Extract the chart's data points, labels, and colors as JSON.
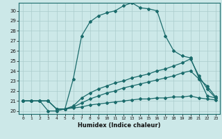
{
  "title": "",
  "xlabel": "Humidex (Indice chaleur)",
  "bg_color": "#cce8e8",
  "grid_color": "#aacccc",
  "line_color": "#1a6b6b",
  "xlim": [
    -0.5,
    23.5
  ],
  "ylim": [
    19.7,
    30.8
  ],
  "yticks": [
    20,
    21,
    22,
    23,
    24,
    25,
    26,
    27,
    28,
    29,
    30
  ],
  "xticks": [
    0,
    1,
    2,
    3,
    4,
    5,
    6,
    7,
    8,
    9,
    10,
    11,
    12,
    13,
    14,
    15,
    16,
    17,
    18,
    19,
    20,
    21,
    22,
    23
  ],
  "line1_x": [
    0,
    1,
    2,
    3,
    4,
    5,
    6,
    7,
    8,
    9,
    10,
    11,
    12,
    13,
    14,
    15,
    16,
    17,
    18,
    19,
    20,
    21,
    22,
    23
  ],
  "line1_y": [
    21.0,
    21.0,
    21.0,
    20.0,
    20.0,
    20.2,
    23.2,
    27.5,
    28.9,
    29.5,
    29.8,
    30.0,
    30.5,
    30.8,
    30.3,
    30.2,
    30.0,
    27.5,
    26.0,
    25.5,
    25.3,
    23.3,
    21.5,
    21.3
  ],
  "line2_x": [
    0,
    1,
    2,
    3,
    4,
    5,
    6,
    7,
    8,
    9,
    10,
    11,
    12,
    13,
    14,
    15,
    16,
    17,
    18,
    19,
    20,
    21,
    22,
    23
  ],
  "line2_y": [
    21.0,
    21.0,
    21.0,
    21.0,
    20.2,
    20.2,
    20.5,
    21.3,
    21.8,
    22.2,
    22.5,
    22.8,
    23.0,
    23.3,
    23.5,
    23.7,
    24.0,
    24.2,
    24.5,
    24.8,
    25.2,
    23.5,
    22.2,
    21.3
  ],
  "line3_x": [
    0,
    1,
    2,
    3,
    4,
    5,
    6,
    7,
    8,
    9,
    10,
    11,
    12,
    13,
    14,
    15,
    16,
    17,
    18,
    19,
    20,
    21,
    22,
    23
  ],
  "line3_y": [
    21.0,
    21.0,
    21.0,
    21.0,
    20.2,
    20.2,
    20.4,
    20.8,
    21.2,
    21.5,
    21.8,
    22.0,
    22.3,
    22.5,
    22.7,
    22.9,
    23.1,
    23.3,
    23.5,
    23.8,
    24.0,
    23.2,
    22.5,
    21.4
  ],
  "line4_x": [
    0,
    1,
    2,
    3,
    4,
    5,
    6,
    7,
    8,
    9,
    10,
    11,
    12,
    13,
    14,
    15,
    16,
    17,
    18,
    19,
    20,
    21,
    22,
    23
  ],
  "line4_y": [
    21.0,
    21.0,
    21.0,
    21.0,
    20.2,
    20.2,
    20.3,
    20.4,
    20.6,
    20.7,
    20.8,
    20.9,
    21.0,
    21.1,
    21.2,
    21.2,
    21.3,
    21.3,
    21.4,
    21.4,
    21.5,
    21.3,
    21.2,
    21.1
  ]
}
